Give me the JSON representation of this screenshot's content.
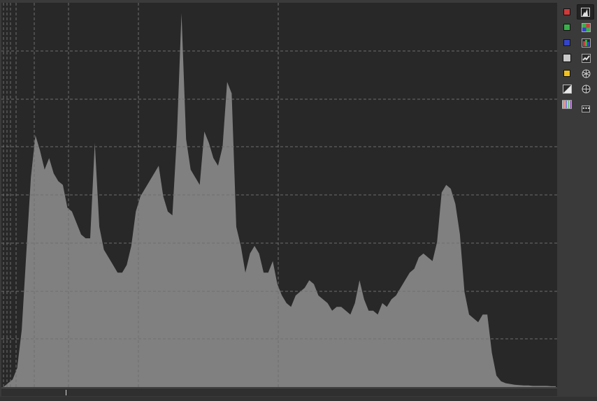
{
  "toolbar": {
    "left_column": [
      {
        "name": "red-channel-toggle",
        "icon": "red-square-icon",
        "color": "#d03a3a"
      },
      {
        "name": "green-channel-toggle",
        "icon": "green-square-icon",
        "color": "#3ab04a"
      },
      {
        "name": "blue-channel-toggle",
        "icon": "blue-square-icon",
        "color": "#3444c8"
      },
      {
        "name": "luminance-toggle",
        "icon": "gray-square-icon",
        "color": "#c8c8c8"
      },
      {
        "name": "chroma-toggle",
        "icon": "yellow-square-icon",
        "color": "#f0c020"
      },
      {
        "name": "raw-histogram-toggle",
        "icon": "gradient-square-icon",
        "color": "#e0e0e0"
      },
      {
        "name": "bayer-display-toggle",
        "icon": "rgb-bars-icon",
        "color": "#c0c0c0"
      }
    ],
    "right_column": [
      {
        "name": "histogram-mode-button",
        "icon": "histogram-icon",
        "active": true
      },
      {
        "name": "vectorscope-hs-button",
        "icon": "color-grid-icon"
      },
      {
        "name": "vectorscope-hc-button",
        "icon": "waveform-rgb-icon"
      },
      {
        "name": "waveform-button",
        "icon": "waveform-icon"
      },
      {
        "name": "scope-hue-button",
        "icon": "color-wheel-icon"
      },
      {
        "name": "scope-chroma-button",
        "icon": "crosshair-circle-icon"
      },
      {
        "name": "more-options-button",
        "icon": "ellipsis-icon",
        "label": "•••"
      }
    ]
  },
  "histogram": {
    "fill_color": "#808080",
    "background_color": "#282828",
    "grid_color": "#6e6e6e",
    "profile": [
      0,
      0.01,
      0.02,
      0.05,
      0.15,
      0.35,
      0.55,
      0.66,
      0.62,
      0.57,
      0.6,
      0.56,
      0.54,
      0.53,
      0.47,
      0.46,
      0.43,
      0.4,
      0.39,
      0.39,
      0.64,
      0.42,
      0.36,
      0.34,
      0.32,
      0.3,
      0.3,
      0.32,
      0.37,
      0.46,
      0.5,
      0.52,
      0.54,
      0.56,
      0.58,
      0.5,
      0.46,
      0.45,
      0.66,
      0.98,
      0.65,
      0.57,
      0.55,
      0.53,
      0.67,
      0.64,
      0.6,
      0.58,
      0.63,
      0.8,
      0.77,
      0.42,
      0.37,
      0.3,
      0.35,
      0.37,
      0.35,
      0.3,
      0.3,
      0.33,
      0.27,
      0.24,
      0.22,
      0.21,
      0.24,
      0.25,
      0.26,
      0.28,
      0.27,
      0.24,
      0.23,
      0.22,
      0.2,
      0.21,
      0.21,
      0.2,
      0.19,
      0.22,
      0.28,
      0.23,
      0.2,
      0.2,
      0.19,
      0.22,
      0.21,
      0.23,
      0.24,
      0.26,
      0.28,
      0.3,
      0.31,
      0.34,
      0.35,
      0.34,
      0.33,
      0.38,
      0.51,
      0.53,
      0.52,
      0.48,
      0.4,
      0.25,
      0.19,
      0.18,
      0.17,
      0.19,
      0.19,
      0.09,
      0.03,
      0.015,
      0.01,
      0.008,
      0.006,
      0.005,
      0.004,
      0.004,
      0.003,
      0.003,
      0.003,
      0.003,
      0.002,
      0.002
    ]
  }
}
